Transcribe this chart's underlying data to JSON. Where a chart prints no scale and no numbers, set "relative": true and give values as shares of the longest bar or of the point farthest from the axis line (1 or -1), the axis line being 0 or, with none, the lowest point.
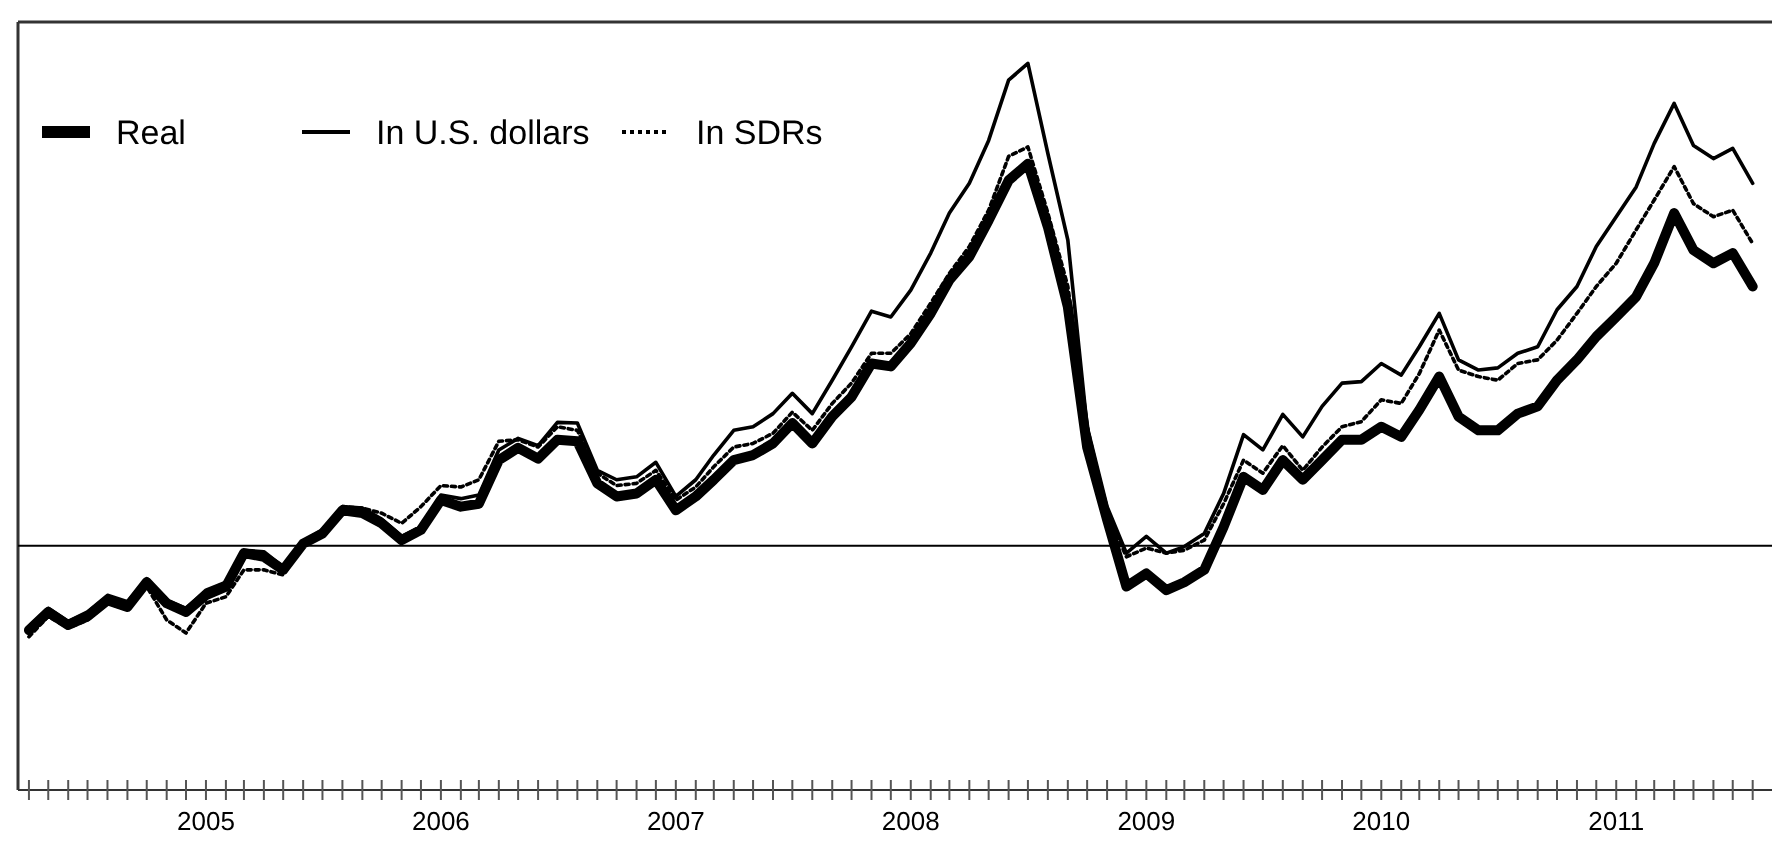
{
  "chart_data": {
    "type": "line",
    "relative": true,
    "legend": "top left",
    "xlim": [
      "2004-03-15",
      "2011-08-31"
    ],
    "xticks": [
      {
        "value": "2004-04",
        "label": null
      },
      {
        "value": "2004-05",
        "label": null
      },
      {
        "value": "2004-06",
        "label": null
      },
      {
        "value": "2004-07",
        "label": null
      },
      {
        "value": "2004-08",
        "label": null
      },
      {
        "value": "2004-09",
        "label": null
      },
      {
        "value": "2004-10",
        "label": null
      },
      {
        "value": "2004-11",
        "label": null
      },
      {
        "value": "2004-12",
        "label": null
      },
      {
        "value": "2005-01",
        "label": "2005"
      },
      {
        "value": "2005-02",
        "label": null
      },
      {
        "value": "2005-03",
        "label": null
      },
      {
        "value": "2005-04",
        "label": null
      },
      {
        "value": "2005-05",
        "label": null
      },
      {
        "value": "2005-06",
        "label": null
      },
      {
        "value": "2005-07",
        "label": null
      },
      {
        "value": "2005-08",
        "label": null
      },
      {
        "value": "2005-09",
        "label": null
      },
      {
        "value": "2005-10",
        "label": null
      },
      {
        "value": "2005-11",
        "label": null
      },
      {
        "value": "2005-12",
        "label": null
      },
      {
        "value": "2006-01",
        "label": "2006"
      },
      {
        "value": "2006-02",
        "label": null
      },
      {
        "value": "2006-03",
        "label": null
      },
      {
        "value": "2006-04",
        "label": null
      },
      {
        "value": "2006-05",
        "label": null
      },
      {
        "value": "2006-06",
        "label": null
      },
      {
        "value": "2006-07",
        "label": null
      },
      {
        "value": "2006-08",
        "label": null
      },
      {
        "value": "2006-09",
        "label": null
      },
      {
        "value": "2006-10",
        "label": null
      },
      {
        "value": "2006-11",
        "label": null
      },
      {
        "value": "2006-12",
        "label": null
      },
      {
        "value": "2007-01",
        "label": "2007"
      },
      {
        "value": "2007-02",
        "label": null
      },
      {
        "value": "2007-03",
        "label": null
      },
      {
        "value": "2007-04",
        "label": null
      },
      {
        "value": "2007-05",
        "label": null
      },
      {
        "value": "2007-06",
        "label": null
      },
      {
        "value": "2007-07",
        "label": null
      },
      {
        "value": "2007-08",
        "label": null
      },
      {
        "value": "2007-09",
        "label": null
      },
      {
        "value": "2007-10",
        "label": null
      },
      {
        "value": "2007-11",
        "label": null
      },
      {
        "value": "2007-12",
        "label": null
      },
      {
        "value": "2008-01",
        "label": "2008"
      },
      {
        "value": "2008-02",
        "label": null
      },
      {
        "value": "2008-03",
        "label": null
      },
      {
        "value": "2008-04",
        "label": null
      },
      {
        "value": "2008-05",
        "label": null
      },
      {
        "value": "2008-06",
        "label": null
      },
      {
        "value": "2008-07",
        "label": null
      },
      {
        "value": "2008-08",
        "label": null
      },
      {
        "value": "2008-09",
        "label": null
      },
      {
        "value": "2008-10",
        "label": null
      },
      {
        "value": "2008-11",
        "label": null
      },
      {
        "value": "2008-12",
        "label": null
      },
      {
        "value": "2009-01",
        "label": "2009"
      },
      {
        "value": "2009-02",
        "label": null
      },
      {
        "value": "2009-03",
        "label": null
      },
      {
        "value": "2009-04",
        "label": null
      },
      {
        "value": "2009-05",
        "label": null
      },
      {
        "value": "2009-06",
        "label": null
      },
      {
        "value": "2009-07",
        "label": null
      },
      {
        "value": "2009-08",
        "label": null
      },
      {
        "value": "2009-09",
        "label": null
      },
      {
        "value": "2009-10",
        "label": null
      },
      {
        "value": "2009-11",
        "label": null
      },
      {
        "value": "2009-12",
        "label": null
      },
      {
        "value": "2010-01",
        "label": "2010"
      },
      {
        "value": "2010-02",
        "label": null
      },
      {
        "value": "2010-03",
        "label": null
      },
      {
        "value": "2010-04",
        "label": null
      },
      {
        "value": "2010-05",
        "label": null
      },
      {
        "value": "2010-06",
        "label": null
      },
      {
        "value": "2010-07",
        "label": null
      },
      {
        "value": "2010-08",
        "label": null
      },
      {
        "value": "2010-09",
        "label": null
      },
      {
        "value": "2010-10",
        "label": null
      },
      {
        "value": "2010-11",
        "label": null
      },
      {
        "value": "2010-12",
        "label": null
      },
      {
        "value": "2011-01",
        "label": "2011"
      },
      {
        "value": "2011-02",
        "label": null
      },
      {
        "value": "2011-03",
        "label": null
      },
      {
        "value": "2011-04",
        "label": null
      },
      {
        "value": "2011-05",
        "label": null
      },
      {
        "value": "2011-06",
        "label": null
      },
      {
        "value": "2011-07",
        "label": null
      },
      {
        "value": "2011-08",
        "label": null
      }
    ],
    "x": [
      "2004-04",
      "2004-05",
      "2004-06",
      "2004-07",
      "2004-08",
      "2004-09",
      "2004-10",
      "2004-11",
      "2004-12",
      "2005-01",
      "2005-02",
      "2005-03",
      "2005-04",
      "2005-05",
      "2005-06",
      "2005-07",
      "2005-08",
      "2005-09",
      "2005-10",
      "2005-11",
      "2005-12",
      "2006-01",
      "2006-02",
      "2006-03",
      "2006-04",
      "2006-05",
      "2006-06",
      "2006-07",
      "2006-08",
      "2006-09",
      "2006-10",
      "2006-11",
      "2006-12",
      "2007-01",
      "2007-02",
      "2007-03",
      "2007-04",
      "2007-05",
      "2007-06",
      "2007-07",
      "2007-08",
      "2007-09",
      "2007-10",
      "2007-11",
      "2007-12",
      "2008-01",
      "2008-02",
      "2008-03",
      "2008-04",
      "2008-05",
      "2008-06",
      "2008-07",
      "2008-08",
      "2008-09",
      "2008-10",
      "2008-11",
      "2008-12",
      "2009-01",
      "2009-02",
      "2009-03",
      "2009-04",
      "2009-05",
      "2009-06",
      "2009-07",
      "2009-08",
      "2009-09",
      "2009-10",
      "2009-11",
      "2009-12",
      "2010-01",
      "2010-02",
      "2010-03",
      "2010-04",
      "2010-05",
      "2010-06",
      "2010-07",
      "2010-08",
      "2010-09",
      "2010-10",
      "2010-11",
      "2010-12",
      "2011-01",
      "2011-02",
      "2011-03",
      "2011-04",
      "2011-05",
      "2011-06",
      "2011-07",
      "2011-08"
    ],
    "ref_lines": [
      {
        "axis": "y",
        "value": 0.336,
        "color": "#000000"
      }
    ],
    "series": [
      {
        "name": "Real",
        "color": "#000000",
        "line_style": "solid",
        "values": [
          0.22,
          0.245,
          0.227,
          0.239,
          0.261,
          0.252,
          0.286,
          0.257,
          0.245,
          0.268,
          0.28,
          0.326,
          0.321,
          0.303,
          0.339,
          0.353,
          0.385,
          0.381,
          0.367,
          0.344,
          0.358,
          0.399,
          0.39,
          0.394,
          0.454,
          0.471,
          0.456,
          0.482,
          0.48,
          0.422,
          0.404,
          0.408,
          0.427,
          0.385,
          0.404,
          0.427,
          0.454,
          0.461,
          0.477,
          0.505,
          0.477,
          0.514,
          0.541,
          0.587,
          0.583,
          0.615,
          0.656,
          0.702,
          0.734,
          0.784,
          0.839,
          0.862,
          0.775,
          0.665,
          0.472,
          0.372,
          0.28,
          0.298,
          0.275,
          0.286,
          0.303,
          0.362,
          0.431,
          0.413,
          0.454,
          0.427,
          0.454,
          0.482,
          0.482,
          0.5,
          0.486,
          0.523,
          0.569,
          0.514,
          0.495,
          0.495,
          0.518,
          0.528,
          0.564,
          0.592,
          0.624,
          0.651,
          0.679,
          0.725,
          0.794,
          0.743,
          0.725,
          0.739,
          0.693
        ]
      },
      {
        "name": "In U.S. dollars",
        "color": "#000000",
        "line_style": "solid",
        "values": [
          0.225,
          0.25,
          0.232,
          0.245,
          0.268,
          0.259,
          0.291,
          0.261,
          0.25,
          0.275,
          0.286,
          0.33,
          0.328,
          0.307,
          0.342,
          0.358,
          0.39,
          0.388,
          0.373,
          0.349,
          0.362,
          0.406,
          0.401,
          0.406,
          0.468,
          0.484,
          0.474,
          0.506,
          0.505,
          0.44,
          0.427,
          0.431,
          0.451,
          0.404,
          0.427,
          0.461,
          0.495,
          0.5,
          0.518,
          0.546,
          0.518,
          0.564,
          0.61,
          0.659,
          0.651,
          0.688,
          0.739,
          0.794,
          0.835,
          0.894,
          0.977,
          1,
          0.876,
          0.757,
          0.5,
          0.39,
          0.326,
          0.349,
          0.326,
          0.335,
          0.353,
          0.408,
          0.489,
          0.468,
          0.517,
          0.486,
          0.528,
          0.56,
          0.562,
          0.587,
          0.571,
          0.61,
          0.656,
          0.592,
          0.578,
          0.581,
          0.601,
          0.61,
          0.661,
          0.693,
          0.748,
          0.789,
          0.83,
          0.89,
          0.945,
          0.887,
          0.869,
          0.883,
          0.835
        ]
      },
      {
        "name": "In SDRs",
        "color": "#000000",
        "line_style": "dotted",
        "values": [
          0.211,
          0.239,
          0.223,
          0.234,
          0.257,
          0.248,
          0.28,
          0.234,
          0.216,
          0.257,
          0.266,
          0.303,
          0.303,
          0.296,
          0.337,
          0.353,
          0.39,
          0.388,
          0.381,
          0.367,
          0.39,
          0.419,
          0.417,
          0.427,
          0.48,
          0.482,
          0.472,
          0.5,
          0.495,
          0.436,
          0.419,
          0.422,
          0.44,
          0.399,
          0.417,
          0.445,
          0.472,
          0.477,
          0.491,
          0.52,
          0.495,
          0.532,
          0.56,
          0.601,
          0.601,
          0.628,
          0.67,
          0.711,
          0.748,
          0.798,
          0.872,
          0.885,
          0.794,
          0.693,
          0.5,
          0.381,
          0.321,
          0.333,
          0.326,
          0.33,
          0.344,
          0.394,
          0.454,
          0.436,
          0.474,
          0.44,
          0.472,
          0.5,
          0.507,
          0.537,
          0.532,
          0.573,
          0.633,
          0.578,
          0.569,
          0.564,
          0.587,
          0.592,
          0.619,
          0.656,
          0.693,
          0.725,
          0.771,
          0.812,
          0.858,
          0.807,
          0.789,
          0.798,
          0.752
        ]
      }
    ]
  }
}
